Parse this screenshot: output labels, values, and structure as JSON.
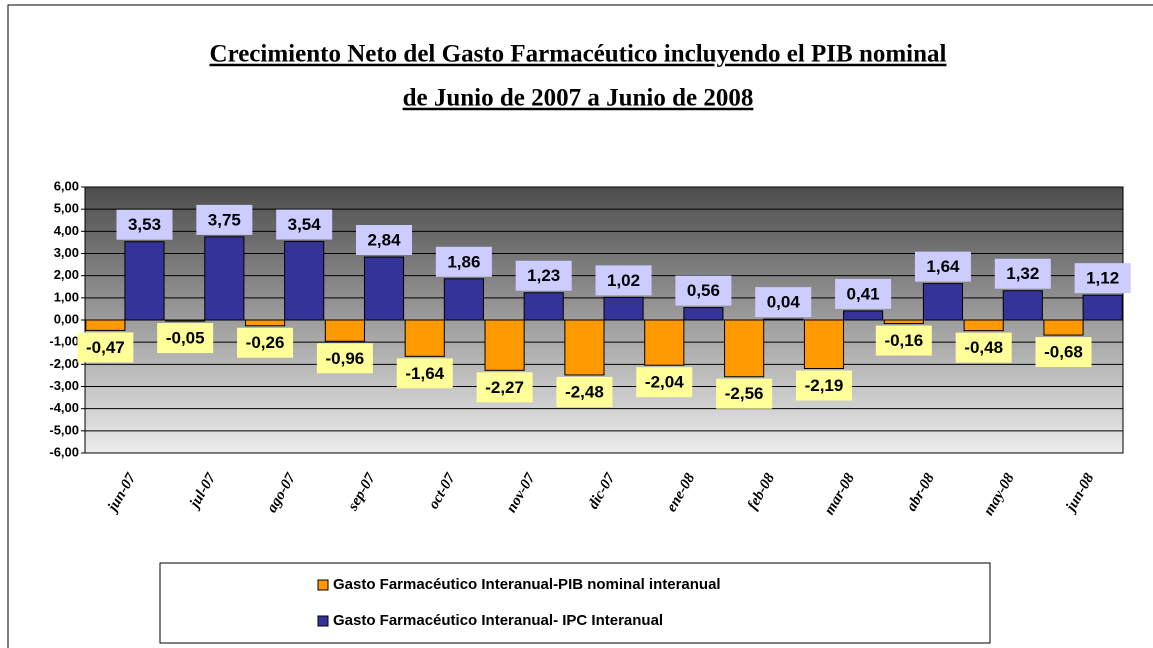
{
  "chart_data": {
    "type": "bar",
    "title": [
      "Crecimiento Neto del Gasto Farmacéutico incluyendo el PIB nominal",
      "de Junio de 2007 a Junio de 2008"
    ],
    "categories": [
      "jun-07",
      "jul-07",
      "ago-07",
      "sep-07",
      "oct-07",
      "nov-07",
      "dic-07",
      "ene-08",
      "feb-08",
      "mar-08",
      "abr-08",
      "may-08",
      "jun-08"
    ],
    "series": [
      {
        "name": "Gasto Farmacéutico Interanual-PIB nominal interanual",
        "color": "#ff9900",
        "values": [
          -0.47,
          -0.05,
          -0.26,
          -0.96,
          -1.64,
          -2.27,
          -2.48,
          -2.04,
          -2.56,
          -2.19,
          -0.16,
          -0.48,
          -0.68
        ],
        "value_labels": [
          "-0,47",
          "-0,05",
          "-0,26",
          "-0,96",
          "-1,64",
          "-2,27",
          "-2,48",
          "-2,04",
          "-2,56",
          "-2,19",
          "-0,16",
          "-0,48",
          "-0,68"
        ]
      },
      {
        "name": "Gasto Farmacéutico Interanual- IPC Interanual",
        "color": "#333399",
        "values": [
          3.53,
          3.75,
          3.54,
          2.84,
          1.86,
          1.23,
          1.02,
          0.56,
          0.04,
          0.41,
          1.64,
          1.32,
          1.12
        ],
        "value_labels": [
          "3,53",
          "3,75",
          "3,54",
          "2,84",
          "1,86",
          "1,23",
          "1,02",
          "0,56",
          "0,04",
          "0,41",
          "1,64",
          "1,32",
          "1,12"
        ]
      }
    ],
    "ylim": [
      -6,
      6
    ],
    "yticks": [
      {
        "value": -6,
        "label": "-6,00"
      },
      {
        "value": -5,
        "label": "-5,00"
      },
      {
        "value": -4,
        "label": "-4,00"
      },
      {
        "value": -3,
        "label": "-3,00"
      },
      {
        "value": -2,
        "label": "-2,00"
      },
      {
        "value": -1,
        "label": "-1,00"
      },
      {
        "value": 0,
        "label": "0,00"
      },
      {
        "value": 1,
        "label": "1,00"
      },
      {
        "value": 2,
        "label": "2,00"
      },
      {
        "value": 3,
        "label": "3,00"
      },
      {
        "value": 4,
        "label": "4,00"
      },
      {
        "value": 5,
        "label": "5,00"
      },
      {
        "value": 6,
        "label": "6,00"
      }
    ],
    "grid": true
  }
}
